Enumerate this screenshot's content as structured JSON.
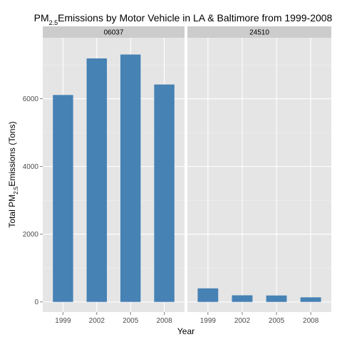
{
  "chart_data": {
    "type": "bar",
    "title": {
      "prefix": "PM",
      "subscript": "2.5",
      "suffix": "Emissions by Motor Vehicle in LA & Baltimore from 1999-2008"
    },
    "xlabel": "Year",
    "ylabel": {
      "prefix": "Total PM",
      "subscript": "2.5",
      "suffix": "Emissions (Tons)"
    },
    "categories": [
      "1999",
      "2002",
      "2005",
      "2008"
    ],
    "ylim": [
      -300,
      7800
    ],
    "yticks": [
      0,
      2000,
      4000,
      6000
    ],
    "facets": [
      {
        "name": "06037",
        "values": [
          6110,
          7190,
          7305,
          6420
        ]
      },
      {
        "name": "24510",
        "values": [
          400,
          195,
          190,
          135
        ]
      }
    ],
    "grid": true,
    "legend": "none",
    "colors": {
      "bar": "#4682b4",
      "panel_background": "#e5e5e5",
      "grid_major": "#ffffff",
      "grid_minor": "#f2f2f2",
      "strip_background": "#cccccc"
    }
  }
}
